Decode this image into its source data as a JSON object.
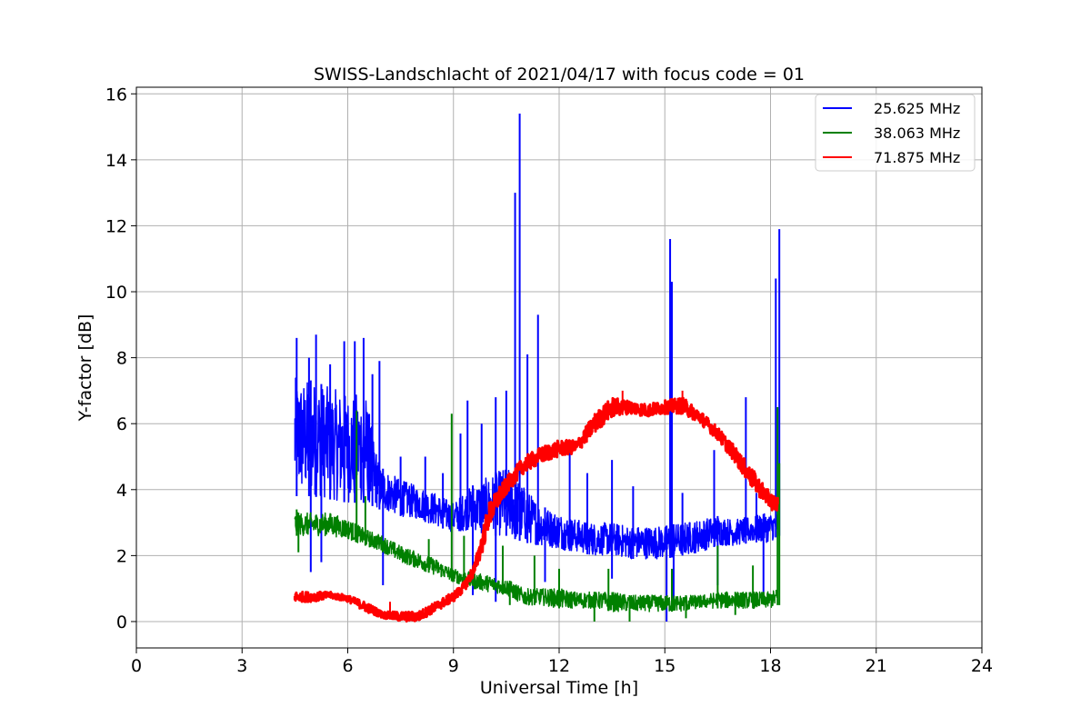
{
  "chart_data": {
    "type": "line",
    "title": "SWISS-Landschlacht of 2021/04/17 with focus code = 01",
    "xlabel": "Universal Time [h]",
    "ylabel": "Y-factor [dB]",
    "xlim": [
      0,
      24
    ],
    "ylim": [
      -0.8,
      16.2
    ],
    "xticks": [
      0,
      3,
      6,
      9,
      12,
      15,
      18,
      21,
      24
    ],
    "xtick_labels": [
      "0",
      "3",
      "6",
      "9",
      "12",
      "15",
      "18",
      "21",
      "24"
    ],
    "yticks": [
      0,
      2,
      4,
      6,
      8,
      10,
      12,
      14,
      16
    ],
    "ytick_labels": [
      "0",
      "2",
      "4",
      "6",
      "8",
      "10",
      "12",
      "14",
      "16"
    ],
    "grid": true,
    "legend_position": "top-right",
    "series": [
      {
        "name": "25.625 MHz",
        "color": "#0000ff",
        "x": [
          4.5,
          5.0,
          5.5,
          6.0,
          6.5,
          6.9,
          7.5,
          8.0,
          8.5,
          9.0,
          9.5,
          10.0,
          10.5,
          11.0,
          11.5,
          12.0,
          12.5,
          13.0,
          13.5,
          14.0,
          14.5,
          15.0,
          15.5,
          16.0,
          16.5,
          17.0,
          17.5,
          18.0,
          18.2
        ],
        "low": [
          3.8,
          3.8,
          3.7,
          3.6,
          3.6,
          3.4,
          3.2,
          3.1,
          2.9,
          2.7,
          2.8,
          2.6,
          2.6,
          2.4,
          2.3,
          2.2,
          2.1,
          2.0,
          2.0,
          1.9,
          1.9,
          1.9,
          2.0,
          2.1,
          2.3,
          2.3,
          2.4,
          2.4,
          2.6
        ],
        "high": [
          7.4,
          7.3,
          7.1,
          6.9,
          7.0,
          4.7,
          4.3,
          4.1,
          3.9,
          3.6,
          4.1,
          4.4,
          4.7,
          4.1,
          3.5,
          3.3,
          3.1,
          3.0,
          3.0,
          2.9,
          2.9,
          2.9,
          3.0,
          3.1,
          3.2,
          3.1,
          3.2,
          3.3,
          3.3
        ],
        "spikes": [
          {
            "x": 4.55,
            "y": 8.6
          },
          {
            "x": 4.9,
            "y": 8.0
          },
          {
            "x": 5.1,
            "y": 8.7
          },
          {
            "x": 5.5,
            "y": 7.8
          },
          {
            "x": 5.9,
            "y": 8.5
          },
          {
            "x": 6.2,
            "y": 8.5
          },
          {
            "x": 6.45,
            "y": 8.6
          },
          {
            "x": 6.7,
            "y": 7.5
          },
          {
            "x": 6.9,
            "y": 7.9
          },
          {
            "x": 7.5,
            "y": 5.0
          },
          {
            "x": 8.2,
            "y": 5.0
          },
          {
            "x": 8.7,
            "y": 4.5
          },
          {
            "x": 9.2,
            "y": 5.7
          },
          {
            "x": 9.4,
            "y": 6.7
          },
          {
            "x": 9.8,
            "y": 6.0
          },
          {
            "x": 10.2,
            "y": 6.8
          },
          {
            "x": 10.5,
            "y": 7.0
          },
          {
            "x": 10.75,
            "y": 13.0
          },
          {
            "x": 10.88,
            "y": 15.4
          },
          {
            "x": 11.1,
            "y": 8.1
          },
          {
            "x": 11.4,
            "y": 9.3
          },
          {
            "x": 12.3,
            "y": 5.5
          },
          {
            "x": 12.8,
            "y": 4.5
          },
          {
            "x": 13.5,
            "y": 4.9
          },
          {
            "x": 14.1,
            "y": 4.1
          },
          {
            "x": 15.15,
            "y": 11.6
          },
          {
            "x": 15.2,
            "y": 10.3
          },
          {
            "x": 15.5,
            "y": 3.9
          },
          {
            "x": 16.4,
            "y": 5.2
          },
          {
            "x": 17.3,
            "y": 6.8
          },
          {
            "x": 17.6,
            "y": 3.9
          },
          {
            "x": 18.15,
            "y": 10.4
          },
          {
            "x": 18.25,
            "y": 11.9
          }
        ],
        "dips": [
          {
            "x": 4.95,
            "y": 1.5
          },
          {
            "x": 5.25,
            "y": 1.8
          },
          {
            "x": 7.0,
            "y": 1.1
          },
          {
            "x": 9.55,
            "y": 0.8
          },
          {
            "x": 10.2,
            "y": 0.6
          },
          {
            "x": 11.6,
            "y": 1.2
          },
          {
            "x": 13.5,
            "y": 1.3
          },
          {
            "x": 15.05,
            "y": 0.0
          },
          {
            "x": 15.25,
            "y": 0.6
          },
          {
            "x": 16.5,
            "y": 1.1
          },
          {
            "x": 17.8,
            "y": 0.7
          }
        ]
      },
      {
        "name": "38.063 MHz",
        "color": "#008000",
        "x": [
          4.5,
          5.0,
          5.5,
          6.0,
          6.5,
          7.0,
          7.5,
          8.0,
          8.5,
          9.0,
          9.5,
          10.0,
          10.5,
          11.0,
          11.5,
          12.0,
          12.5,
          13.0,
          13.5,
          14.0,
          14.5,
          15.0,
          15.5,
          16.0,
          16.5,
          17.0,
          17.5,
          18.0,
          18.2
        ],
        "low": [
          2.6,
          2.6,
          2.6,
          2.5,
          2.3,
          2.1,
          1.8,
          1.6,
          1.4,
          1.2,
          1.0,
          0.9,
          0.8,
          0.5,
          0.5,
          0.4,
          0.4,
          0.4,
          0.3,
          0.3,
          0.3,
          0.3,
          0.3,
          0.4,
          0.4,
          0.4,
          0.4,
          0.4,
          0.5
        ],
        "high": [
          3.3,
          3.3,
          3.3,
          3.1,
          2.8,
          2.6,
          2.3,
          2.1,
          1.9,
          1.6,
          1.5,
          1.4,
          1.3,
          1.0,
          1.0,
          1.0,
          0.9,
          0.9,
          0.9,
          0.8,
          0.8,
          0.8,
          0.8,
          0.8,
          0.9,
          0.9,
          0.9,
          0.9,
          1.0
        ],
        "spikes": [
          {
            "x": 4.55,
            "y": 3.4
          },
          {
            "x": 6.25,
            "y": 6.4
          },
          {
            "x": 6.5,
            "y": 3.8
          },
          {
            "x": 8.3,
            "y": 2.5
          },
          {
            "x": 8.95,
            "y": 6.3
          },
          {
            "x": 9.3,
            "y": 2.6
          },
          {
            "x": 10.4,
            "y": 2.3
          },
          {
            "x": 11.3,
            "y": 2.0
          },
          {
            "x": 12.0,
            "y": 1.6
          },
          {
            "x": 13.4,
            "y": 1.6
          },
          {
            "x": 15.2,
            "y": 1.6
          },
          {
            "x": 16.5,
            "y": 2.3
          },
          {
            "x": 17.5,
            "y": 1.7
          },
          {
            "x": 18.2,
            "y": 6.5
          },
          {
            "x": 18.25,
            "y": 4.8
          }
        ],
        "dips": [
          {
            "x": 4.6,
            "y": 2.1
          },
          {
            "x": 10.6,
            "y": 0.5
          },
          {
            "x": 13.0,
            "y": 0.0
          },
          {
            "x": 14.0,
            "y": 0.0
          },
          {
            "x": 15.6,
            "y": 0.1
          },
          {
            "x": 17.0,
            "y": 0.2
          }
        ]
      },
      {
        "name": "71.875 MHz",
        "color": "#ff0000",
        "x": [
          4.5,
          5.0,
          5.5,
          6.0,
          6.5,
          7.0,
          7.5,
          8.0,
          8.5,
          9.0,
          9.3,
          9.6,
          9.8,
          10.0,
          10.3,
          10.6,
          11.0,
          11.5,
          12.0,
          12.5,
          13.0,
          13.5,
          14.0,
          14.5,
          15.0,
          15.5,
          16.0,
          16.5,
          17.0,
          17.5,
          18.0,
          18.2
        ],
        "low": [
          0.6,
          0.6,
          0.7,
          0.6,
          0.3,
          0.1,
          0.0,
          0.0,
          0.3,
          0.6,
          0.9,
          1.4,
          2.0,
          2.8,
          3.5,
          4.0,
          4.5,
          4.8,
          5.0,
          5.1,
          5.7,
          6.2,
          6.3,
          6.2,
          6.3,
          6.3,
          6.0,
          5.5,
          4.8,
          4.0,
          3.4,
          3.3
        ],
        "high": [
          0.9,
          0.9,
          0.9,
          0.8,
          0.6,
          0.3,
          0.3,
          0.3,
          0.6,
          0.9,
          1.2,
          1.8,
          2.7,
          3.6,
          4.1,
          4.5,
          5.0,
          5.3,
          5.5,
          5.5,
          6.3,
          6.8,
          6.7,
          6.6,
          6.7,
          6.8,
          6.4,
          5.9,
          5.3,
          4.6,
          3.9,
          3.8
        ],
        "spikes": [
          {
            "x": 7.2,
            "y": 0.6
          },
          {
            "x": 13.8,
            "y": 7.0
          },
          {
            "x": 15.5,
            "y": 7.0
          }
        ],
        "dips": []
      }
    ]
  }
}
